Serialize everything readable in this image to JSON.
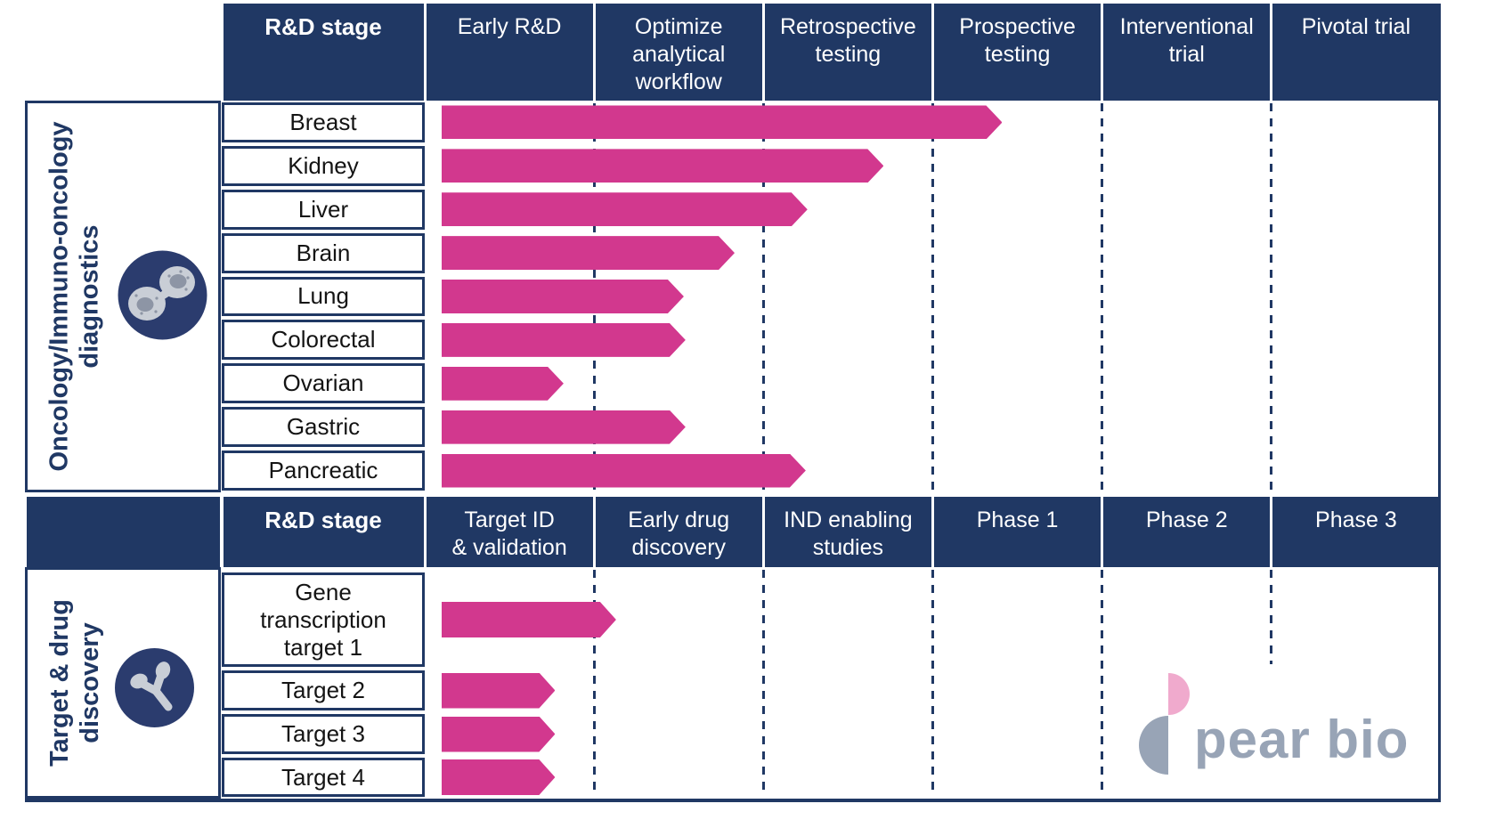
{
  "colors": {
    "navy": "#203864",
    "bar_pink": "#d2388e",
    "logo_gray": "#98a4b6",
    "logo_pink": "#f0aacd",
    "row_text": "#141414",
    "background": "#ffffff"
  },
  "sections": [
    {
      "name": "oncology-diagnostics",
      "label_lines": [
        "Oncology/Immuno-oncology",
        "diagnostics"
      ],
      "icon": "cell-division-icon",
      "header": {
        "label_col": "R&D stage",
        "stages": [
          "Early R&D",
          "Optimize\nanalytical\nworkflow",
          "Retrospective\ntesting",
          "Prospective\ntesting",
          "Interventional\ntrial",
          "Pivotal trial"
        ]
      },
      "rows": [
        {
          "label": "Breast",
          "progress": 3.41
        },
        {
          "label": "Kidney",
          "progress": 2.71
        },
        {
          "label": "Liver",
          "progress": 2.26
        },
        {
          "label": "Brain",
          "progress": 1.83
        },
        {
          "label": "Lung",
          "progress": 1.53
        },
        {
          "label": "Colorectal",
          "progress": 1.54
        },
        {
          "label": "Ovarian",
          "progress": 0.82
        },
        {
          "label": "Gastric",
          "progress": 1.54
        },
        {
          "label": "Pancreatic",
          "progress": 2.25
        }
      ]
    },
    {
      "name": "target-drug-discovery",
      "label_lines": [
        "Target & drug",
        "discovery"
      ],
      "icon": "antibody-icon",
      "header": {
        "label_col": "R&D stage",
        "stages": [
          "Target ID\n& validation",
          "Early drug\ndiscovery",
          "IND enabling\nstudies",
          "Phase 1",
          "Phase 2",
          "Phase 3"
        ]
      },
      "rows": [
        {
          "label": "Gene\ntranscription\ntarget 1",
          "progress": 1.13
        },
        {
          "label": "Target 2",
          "progress": 0.77
        },
        {
          "label": "Target 3",
          "progress": 0.77
        },
        {
          "label": "Target 4",
          "progress": 0.77
        }
      ]
    }
  ],
  "logo": {
    "text": "pear bio"
  },
  "chart_data": [
    {
      "type": "bar",
      "title": "Oncology/Immuno-oncology diagnostics",
      "xlabel": "R&D stage",
      "stages": [
        "Early R&D",
        "Optimize analytical workflow",
        "Retrospective testing",
        "Prospective testing",
        "Interventional trial",
        "Pivotal trial"
      ],
      "categories": [
        "Breast",
        "Kidney",
        "Liver",
        "Brain",
        "Lung",
        "Colorectal",
        "Ovarian",
        "Gastric",
        "Pancreatic"
      ],
      "values": [
        3.41,
        2.71,
        2.26,
        1.83,
        1.53,
        1.54,
        0.82,
        1.54,
        2.25
      ],
      "value_unit": "stages completed (of 6)",
      "xlim": [
        0,
        6
      ],
      "grid": "dashed vertical lines at stage boundaries",
      "legend_position": "none"
    },
    {
      "type": "bar",
      "title": "Target & drug discovery",
      "xlabel": "R&D stage",
      "stages": [
        "Target ID & validation",
        "Early drug discovery",
        "IND enabling studies",
        "Phase 1",
        "Phase 2",
        "Phase 3"
      ],
      "categories": [
        "Gene transcription target 1",
        "Target 2",
        "Target 3",
        "Target 4"
      ],
      "values": [
        1.13,
        0.77,
        0.77,
        0.77
      ],
      "value_unit": "stages completed (of 6)",
      "xlim": [
        0,
        6
      ],
      "grid": "dashed vertical lines at stage boundaries",
      "legend_position": "none"
    }
  ]
}
